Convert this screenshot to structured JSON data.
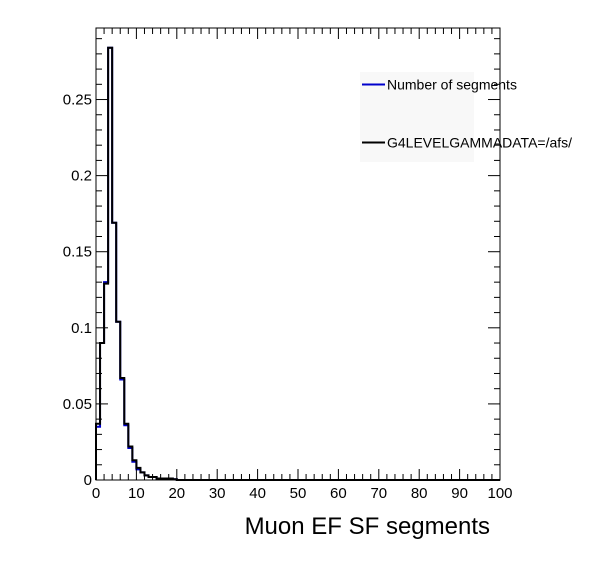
{
  "chart_data": {
    "type": "histogram",
    "title": "",
    "xlabel": "Muon EF SF segments",
    "ylabel": "",
    "xlim": [
      0,
      100
    ],
    "ylim": [
      0,
      0.297
    ],
    "bin_width": 1,
    "xticks_major": [
      0,
      10,
      20,
      30,
      40,
      50,
      60,
      70,
      80,
      90,
      100
    ],
    "x_tick_labels": [
      "0",
      "10",
      "20",
      "30",
      "40",
      "50",
      "60",
      "70",
      "80",
      "90",
      "100"
    ],
    "yticks_major": [
      0,
      0.05,
      0.1,
      0.15,
      0.2,
      0.25
    ],
    "y_tick_labels": [
      "0",
      "0.05",
      "0.1",
      "0.15",
      "0.2",
      "0.25"
    ],
    "grid": false,
    "legend_position": "top-right",
    "series": [
      {
        "name": "Number of segments",
        "color": "#0000cc",
        "values": [
          0.035,
          0.09,
          0.13,
          0.284,
          0.169,
          0.104,
          0.066,
          0.036,
          0.021,
          0.012,
          0.007,
          0.005,
          0.003,
          0.002,
          0.002,
          0.001,
          0.001,
          0.001,
          0.001,
          0.0005
        ]
      },
      {
        "name": "G4LEVELGAMMADATA=/afs/",
        "color": "#000000",
        "values": [
          0.037,
          0.09,
          0.129,
          0.284,
          0.169,
          0.104,
          0.067,
          0.037,
          0.022,
          0.013,
          0.008,
          0.005,
          0.003,
          0.002,
          0.002,
          0.001,
          0.001,
          0.001,
          0.001,
          0.0005
        ]
      }
    ]
  }
}
